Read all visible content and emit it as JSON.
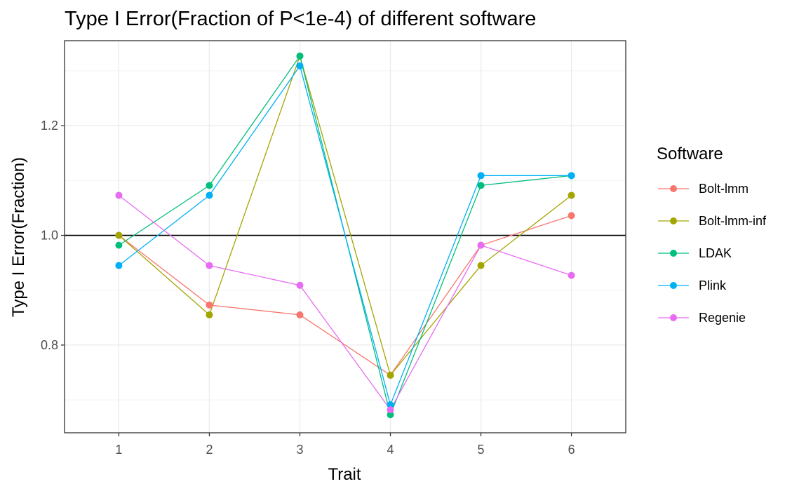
{
  "chart_data": {
    "type": "line",
    "title": "Type I Error(Fraction of P<1e-4) of different software",
    "xlabel": "Trait",
    "ylabel": "Type I Error(Fraction)",
    "x": [
      1,
      2,
      3,
      4,
      5,
      6
    ],
    "x_tick_labels": [
      "1",
      "2",
      "3",
      "4",
      "5",
      "6"
    ],
    "xlim": [
      0.4,
      6.6
    ],
    "ylim": [
      0.64,
      1.355
    ],
    "y_ticks": [
      0.8,
      1.0,
      1.2
    ],
    "y_tick_labels": [
      "0.8",
      "1.0",
      "1.2"
    ],
    "reference_line": {
      "y": 1.0,
      "color": "#000000"
    },
    "grid": true,
    "legend": {
      "title": "Software",
      "position": "right"
    },
    "series": [
      {
        "name": "Bolt-lmm",
        "color": "#F8766D",
        "values": [
          1.0,
          0.873,
          0.855,
          0.745,
          0.982,
          1.036
        ]
      },
      {
        "name": "Bolt-lmm-inf",
        "color": "#A3A500",
        "values": [
          1.0,
          0.855,
          1.327,
          0.745,
          0.945,
          1.073
        ]
      },
      {
        "name": "LDAK",
        "color": "#00BF7D",
        "values": [
          0.982,
          1.091,
          1.327,
          0.673,
          1.091,
          1.109
        ]
      },
      {
        "name": "Plink",
        "color": "#00B0F6",
        "values": [
          0.945,
          1.073,
          1.309,
          0.691,
          1.109,
          1.109
        ]
      },
      {
        "name": "Regenie",
        "color": "#E76BF3",
        "values": [
          1.073,
          0.945,
          0.909,
          0.682,
          0.982,
          0.927
        ]
      }
    ]
  }
}
